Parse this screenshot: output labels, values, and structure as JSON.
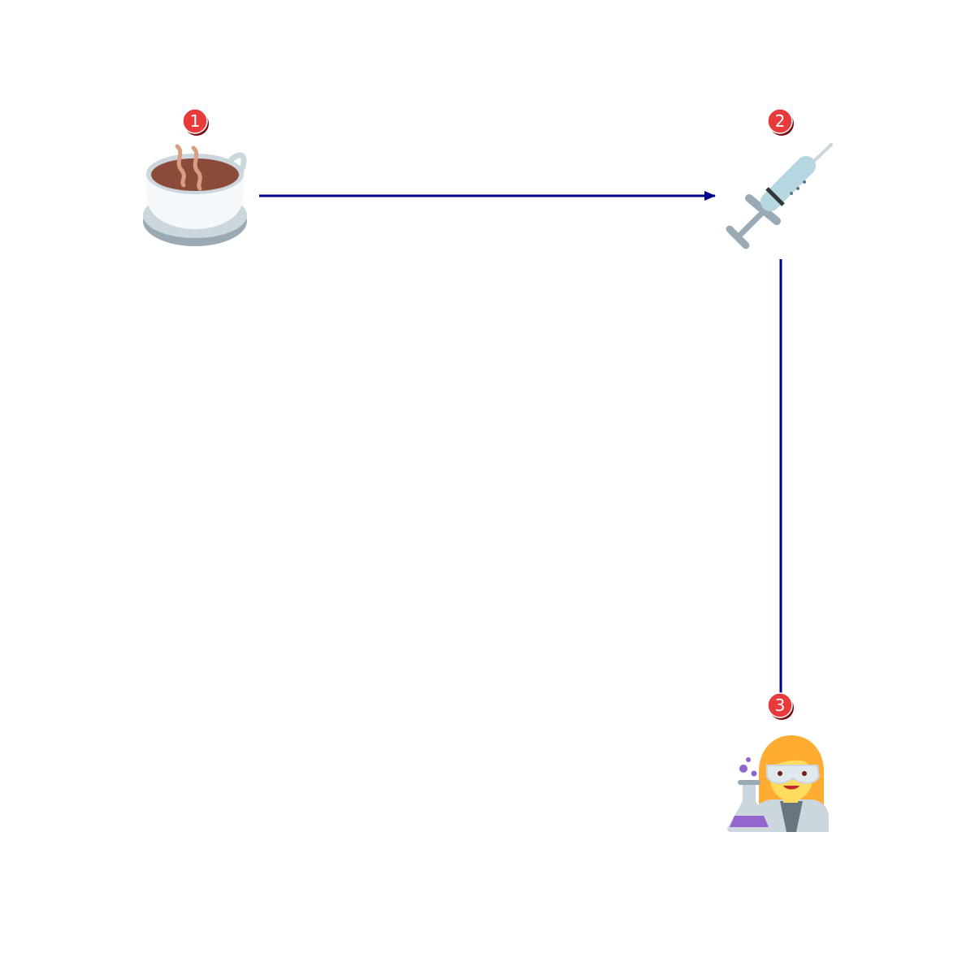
{
  "diagram": {
    "colors": {
      "connector": "#00008b",
      "badge_fill": "#e83a3a",
      "badge_shadow": "#7a1010",
      "badge_text": "#ffffff"
    },
    "nodes": [
      {
        "id": "node-1",
        "step": "1",
        "icon": "hot-beverage-icon"
      },
      {
        "id": "node-2",
        "step": "2",
        "icon": "syringe-icon"
      },
      {
        "id": "node-3",
        "step": "3",
        "icon": "woman-scientist-icon"
      }
    ],
    "edges": [
      {
        "from": "1",
        "to": "2",
        "arrowhead": true
      },
      {
        "from": "2",
        "to": "3",
        "arrowhead": false
      }
    ]
  }
}
